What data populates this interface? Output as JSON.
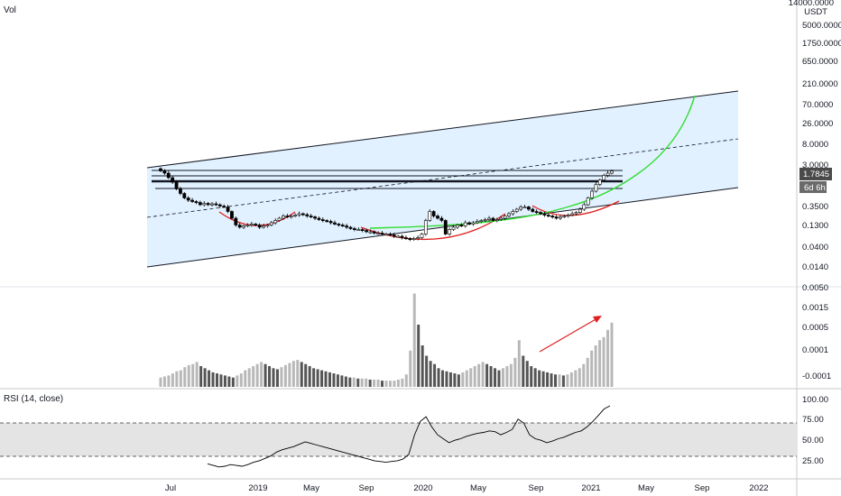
{
  "header": {
    "volume_label": "Vol",
    "rsi_label": "RSI (14, close)",
    "price_unit_top": "14000.0000",
    "price_unit": "USDT"
  },
  "colors": {
    "channel_fill": "#ddeeff",
    "channel_line": "#131722",
    "arc_red": "#e02020",
    "curve_green": "#33dd33",
    "candle_up": "#ffffff",
    "candle_down": "#000000",
    "volume_up": "#b8b8b8",
    "volume_down": "#555555",
    "rsi_band": "#e4e4e4",
    "rsi_line": "#000000",
    "price_badge": "#4a4a4a",
    "countdown_badge": "#6a6a6a"
  },
  "chart_data": {
    "type": "candlestick",
    "price_scale": "log",
    "price_ticks": [
      "5000.0000",
      "1750.0000",
      "650.0000",
      "210.0000",
      "70.0000",
      "26.0000",
      "8.0000",
      "3.0000",
      "0.3500",
      "0.1300",
      "0.0400",
      "0.0140"
    ],
    "current_price_label": "1.7845",
    "countdown_label": "6d 6h",
    "x_ticks": [
      "Jul",
      "2019",
      "May",
      "Sep",
      "2020",
      "May",
      "Sep",
      "2021",
      "May",
      "Sep",
      "2022"
    ],
    "volume_ticks": [
      "0.0050",
      "0.0015",
      "0.0005",
      "0.0001",
      "-0.0001"
    ],
    "rsi_ticks": [
      "100.00",
      "75.00",
      "50.00",
      "25.00"
    ],
    "rsi_levels": [
      70,
      30
    ],
    "weeks": 137,
    "close_log": [
      0.3,
      0.25,
      0.15,
      0.05,
      -0.1,
      -0.2,
      -0.3,
      -0.35,
      -0.38,
      -0.4,
      -0.45,
      -0.42,
      -0.45,
      -0.43,
      -0.45,
      -0.48,
      -0.5,
      -0.6,
      -0.75,
      -0.9,
      -0.95,
      -0.92,
      -0.9,
      -0.88,
      -0.9,
      -0.95,
      -0.92,
      -0.9,
      -0.85,
      -0.8,
      -0.75,
      -0.7,
      -0.72,
      -0.7,
      -0.68,
      -0.65,
      -0.67,
      -0.7,
      -0.72,
      -0.75,
      -0.78,
      -0.8,
      -0.82,
      -0.85,
      -0.88,
      -0.9,
      -0.92,
      -0.95,
      -0.98,
      -1.0,
      -1.0,
      -1.02,
      -1.05,
      -1.05,
      -1.08,
      -1.08,
      -1.1,
      -1.1,
      -1.12,
      -1.15,
      -1.15,
      -1.18,
      -1.2,
      -1.22,
      -1.2,
      -1.18,
      -1.1,
      -0.8,
      -0.6,
      -0.7,
      -0.75,
      -0.8,
      -1.1,
      -1.0,
      -0.95,
      -0.9,
      -0.92,
      -0.85,
      -0.88,
      -0.85,
      -0.82,
      -0.8,
      -0.78,
      -0.75,
      -0.8,
      -0.78,
      -0.75,
      -0.7,
      -0.65,
      -0.6,
      -0.55,
      -0.5,
      -0.5,
      -0.55,
      -0.6,
      -0.62,
      -0.65,
      -0.68,
      -0.7,
      -0.72,
      -0.75,
      -0.72,
      -0.7,
      -0.68,
      -0.65,
      -0.62,
      -0.55,
      -0.45,
      -0.3,
      -0.15,
      0.0,
      0.1,
      0.2,
      0.25,
      0.3
    ],
    "volume": [
      9,
      10,
      11,
      13,
      15,
      16,
      19,
      21,
      22,
      24,
      20,
      18,
      16,
      14,
      13,
      12,
      11,
      10,
      9,
      11,
      13,
      16,
      18,
      20,
      22,
      24,
      22,
      20,
      18,
      17,
      19,
      21,
      23,
      25,
      26,
      24,
      22,
      20,
      18,
      17,
      16,
      15,
      14,
      13,
      12,
      11,
      10,
      9,
      9,
      8,
      8,
      8,
      7,
      7,
      7,
      6,
      6,
      6,
      6,
      7,
      8,
      12,
      35,
      90,
      60,
      40,
      30,
      25,
      22,
      18,
      16,
      15,
      14,
      13,
      12,
      14,
      16,
      18,
      20,
      22,
      24,
      22,
      20,
      18,
      16,
      18,
      20,
      22,
      28,
      45,
      30,
      25,
      20,
      18,
      16,
      15,
      14,
      13,
      12,
      12,
      11,
      12,
      14,
      16,
      18,
      22,
      28,
      35,
      40,
      45,
      48,
      55,
      62
    ],
    "rsi": [
      18,
      16,
      14,
      15,
      17,
      16,
      15,
      17,
      20,
      22,
      25,
      28,
      33,
      36,
      38,
      40,
      43,
      46,
      44,
      42,
      40,
      38,
      36,
      34,
      32,
      30,
      28,
      26,
      24,
      22,
      21,
      20,
      21,
      22,
      24,
      30,
      55,
      72,
      78,
      65,
      55,
      50,
      45,
      48,
      50,
      53,
      55,
      57,
      58,
      60,
      59,
      55,
      58,
      62,
      75,
      70,
      55,
      50,
      48,
      45,
      47,
      50,
      52,
      55,
      58,
      60,
      65,
      72,
      80,
      88,
      92
    ]
  }
}
